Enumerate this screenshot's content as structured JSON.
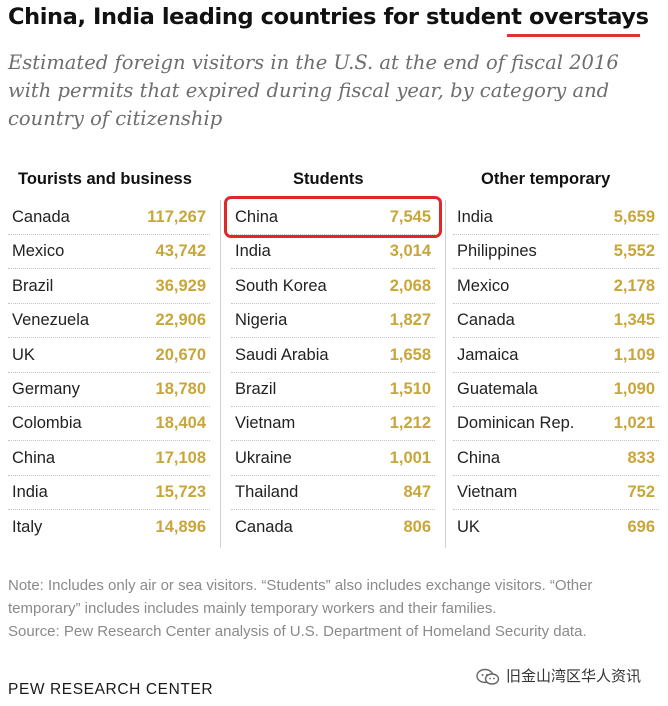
{
  "chart_data": {
    "type": "table",
    "title": "China, India leading countries for student overstays",
    "subtitle": "Estimated foreign visitors in the U.S. at the end of fiscal 2016 with permits that expired during fiscal year, by category and country of citizenship",
    "columns": [
      {
        "header": "Tourists and business",
        "rows": [
          {
            "country": "Canada",
            "value": "117,267"
          },
          {
            "country": "Mexico",
            "value": "43,742"
          },
          {
            "country": "Brazil",
            "value": "36,929"
          },
          {
            "country": "Venezuela",
            "value": "22,906"
          },
          {
            "country": "UK",
            "value": "20,670"
          },
          {
            "country": "Germany",
            "value": "18,780"
          },
          {
            "country": "Colombia",
            "value": "18,404"
          },
          {
            "country": "China",
            "value": "17,108"
          },
          {
            "country": "India",
            "value": "15,723"
          },
          {
            "country": "Italy",
            "value": "14,896"
          }
        ]
      },
      {
        "header": "Students",
        "rows": [
          {
            "country": "China",
            "value": "7,545"
          },
          {
            "country": "India",
            "value": "3,014"
          },
          {
            "country": "South Korea",
            "value": "2,068"
          },
          {
            "country": "Nigeria",
            "value": "1,827"
          },
          {
            "country": "Saudi Arabia",
            "value": "1,658"
          },
          {
            "country": "Brazil",
            "value": "1,510"
          },
          {
            "country": "Vietnam",
            "value": "1,212"
          },
          {
            "country": "Ukraine",
            "value": "1,001"
          },
          {
            "country": "Thailand",
            "value": "847"
          },
          {
            "country": "Canada",
            "value": "806"
          }
        ]
      },
      {
        "header": "Other temporary",
        "rows": [
          {
            "country": "India",
            "value": "5,659"
          },
          {
            "country": "Philippines",
            "value": "5,552"
          },
          {
            "country": "Mexico",
            "value": "2,178"
          },
          {
            "country": "Canada",
            "value": "1,345"
          },
          {
            "country": "Jamaica",
            "value": "1,109"
          },
          {
            "country": "Guatemala",
            "value": "1,090"
          },
          {
            "country": "Dominican Rep.",
            "value": "1,021"
          },
          {
            "country": "China",
            "value": "833"
          },
          {
            "country": "Vietnam",
            "value": "752"
          },
          {
            "country": "UK",
            "value": "696"
          }
        ]
      }
    ],
    "note": "Note: Includes only air or sea visitors. “Students” also includes exchange visitors. “Other temporary” includes includes mainly temporary workers and their families.",
    "source": "Source: Pew Research Center analysis of U.S. Department of Homeland Security data.",
    "footer": "PEW RESEARCH CENTER",
    "highlight": "Students: China",
    "colors": {
      "value": "#c9a63a",
      "title_underline": "#e03030",
      "highlight_box": "#e02828",
      "subtitle": "#6e6e6e",
      "note": "#8a8a8a"
    }
  },
  "watermark": {
    "icon": "wechat-icon",
    "text": "旧金山湾区华人资讯"
  }
}
